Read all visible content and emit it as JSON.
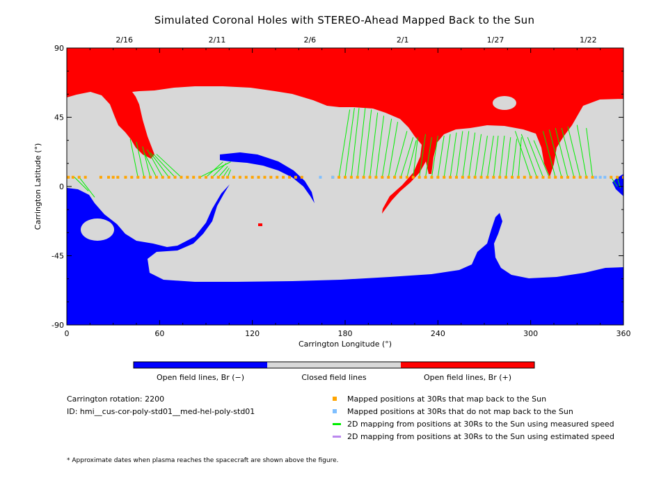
{
  "title": "Simulated Coronal Holes with STEREO-Ahead Mapped Back to the Sun",
  "top_dates": [
    {
      "label": "2/16",
      "lon": 30
    },
    {
      "label": "2/11",
      "lon": 90
    },
    {
      "label": "2/6",
      "lon": 150
    },
    {
      "label": "2/1",
      "lon": 210
    },
    {
      "label": "1/27",
      "lon": 270
    },
    {
      "label": "1/22",
      "lon": 330
    }
  ],
  "x_axis": {
    "label": "Carrington Longitude (°)",
    "ticks": [
      0,
      60,
      120,
      180,
      240,
      300,
      360
    ],
    "range": [
      0,
      360
    ]
  },
  "y_axis": {
    "label": "Carrington Latitude (°)",
    "ticks": [
      90,
      45,
      0,
      -45,
      -90
    ],
    "range": [
      -90,
      90
    ]
  },
  "colors": {
    "open_negative": "#0000ff",
    "closed": "#d8d8d8",
    "open_positive": "#ff0000",
    "mapped": "#ffa500",
    "unmapped": "#7fbfff",
    "measured": "#00ee00",
    "estimated": "#bb88ee"
  },
  "colorbar": {
    "labels": [
      "Open field lines, Br (−)",
      "Closed field lines",
      "Open field lines, Br (+)"
    ]
  },
  "info": {
    "rotation": "Carrington rotation: 2200",
    "id": "ID: hmi__cus-cor-poly-std01__med-hel-poly-std01"
  },
  "legend": [
    {
      "type": "square",
      "color": "#ffa500",
      "label": "Mapped positions at 30Rs that map back to the Sun"
    },
    {
      "type": "square",
      "color": "#7fbfff",
      "label": "Mapped positions at 30Rs that do not map back to the Sun"
    },
    {
      "type": "line",
      "color": "#00ee00",
      "label": "2D mapping from positions at 30Rs to the Sun using measured speed"
    },
    {
      "type": "line",
      "color": "#bb88ee",
      "label": "2D mapping from positions at 30Rs to the Sun using estimated speed"
    }
  ],
  "footnote": "* Approximate dates when plasma reaches the spacecraft are shown above the figure.",
  "chart_data": {
    "type": "scatter",
    "subtype": "coronal-hole map with spacecraft mapping",
    "xlim": [
      0,
      360
    ],
    "ylim": [
      -90,
      90
    ],
    "spacecraft_latitude": 6,
    "mapped_longitudes": [
      1,
      4,
      8,
      12,
      22,
      27,
      30,
      33,
      38,
      42,
      46,
      50,
      54,
      58,
      62,
      66,
      70,
      74,
      78,
      82,
      86,
      90,
      94,
      98,
      101,
      104,
      108,
      112,
      116,
      120,
      124,
      128,
      132,
      136,
      140,
      144,
      148,
      152,
      172,
      176,
      180,
      184,
      188,
      192,
      196,
      200,
      204,
      208,
      212,
      216,
      220,
      224,
      228,
      232,
      236,
      240,
      244,
      248,
      252,
      256,
      260,
      264,
      268,
      272,
      276,
      280,
      284,
      288,
      292,
      296,
      300,
      304,
      308,
      312,
      316,
      320,
      324,
      328,
      332,
      336,
      340,
      352,
      356,
      360
    ],
    "unmapped_longitudes": [
      164,
      172,
      342,
      345,
      348
    ],
    "mapping_lines": [
      {
        "from": [
          46,
          6
        ],
        "to": [
          41,
          31
        ]
      },
      {
        "from": [
          50,
          6
        ],
        "to": [
          45,
          29
        ]
      },
      {
        "from": [
          54,
          6
        ],
        "to": [
          49,
          26
        ]
      },
      {
        "from": [
          58,
          6
        ],
        "to": [
          50,
          22
        ]
      },
      {
        "from": [
          62,
          6
        ],
        "to": [
          52,
          24
        ]
      },
      {
        "from": [
          66,
          6
        ],
        "to": [
          54,
          22
        ]
      },
      {
        "from": [
          70,
          6
        ],
        "to": [
          56,
          21
        ]
      },
      {
        "from": [
          74,
          6
        ],
        "to": [
          58,
          21
        ]
      },
      {
        "from": [
          5,
          6
        ],
        "to": [
          14,
          -3
        ]
      },
      {
        "from": [
          8,
          6
        ],
        "to": [
          18,
          -7
        ]
      },
      {
        "from": [
          86,
          6
        ],
        "to": [
          106,
          16
        ]
      },
      {
        "from": [
          90,
          6
        ],
        "to": [
          101,
          16
        ]
      },
      {
        "from": [
          94,
          6
        ],
        "to": [
          103,
          15
        ]
      },
      {
        "from": [
          98,
          6
        ],
        "to": [
          104,
          13
        ]
      },
      {
        "from": [
          101,
          6
        ],
        "to": [
          105,
          12
        ]
      },
      {
        "from": [
          104,
          6
        ],
        "to": [
          106,
          11
        ]
      },
      {
        "from": [
          176,
          6
        ],
        "to": [
          183,
          50
        ]
      },
      {
        "from": [
          180,
          6
        ],
        "to": [
          186,
          51
        ]
      },
      {
        "from": [
          184,
          6
        ],
        "to": [
          189,
          51
        ]
      },
      {
        "from": [
          188,
          6
        ],
        "to": [
          193,
          51
        ]
      },
      {
        "from": [
          192,
          6
        ],
        "to": [
          197,
          50
        ]
      },
      {
        "from": [
          196,
          6
        ],
        "to": [
          201,
          48
        ]
      },
      {
        "from": [
          200,
          6
        ],
        "to": [
          205,
          46
        ]
      },
      {
        "from": [
          204,
          6
        ],
        "to": [
          210,
          44
        ]
      },
      {
        "from": [
          208,
          6
        ],
        "to": [
          214,
          42
        ]
      },
      {
        "from": [
          212,
          6
        ],
        "to": [
          220,
          36
        ]
      },
      {
        "from": [
          216,
          6
        ],
        "to": [
          224,
          32
        ]
      },
      {
        "from": [
          220,
          6
        ],
        "to": [
          226,
          30
        ]
      },
      {
        "from": [
          224,
          6
        ],
        "to": [
          227,
          32
        ]
      },
      {
        "from": [
          228,
          6
        ],
        "to": [
          232,
          34
        ]
      },
      {
        "from": [
          232,
          6
        ],
        "to": [
          236,
          32
        ]
      },
      {
        "from": [
          236,
          6
        ],
        "to": [
          240,
          33
        ]
      },
      {
        "from": [
          240,
          6
        ],
        "to": [
          244,
          33
        ]
      },
      {
        "from": [
          244,
          6
        ],
        "to": [
          248,
          34
        ]
      },
      {
        "from": [
          248,
          6
        ],
        "to": [
          252,
          35
        ]
      },
      {
        "from": [
          252,
          6
        ],
        "to": [
          256,
          36
        ]
      },
      {
        "from": [
          256,
          6
        ],
        "to": [
          260,
          36
        ]
      },
      {
        "from": [
          260,
          6
        ],
        "to": [
          264,
          35
        ]
      },
      {
        "from": [
          264,
          6
        ],
        "to": [
          268,
          34
        ]
      },
      {
        "from": [
          268,
          6
        ],
        "to": [
          272,
          33
        ]
      },
      {
        "from": [
          272,
          6
        ],
        "to": [
          276,
          33
        ]
      },
      {
        "from": [
          276,
          6
        ],
        "to": [
          279,
          33
        ]
      },
      {
        "from": [
          280,
          6
        ],
        "to": [
          283,
          33
        ]
      },
      {
        "from": [
          284,
          6
        ],
        "to": [
          287,
          32
        ]
      },
      {
        "from": [
          288,
          6
        ],
        "to": [
          291,
          31
        ]
      },
      {
        "from": [
          292,
          6
        ],
        "to": [
          294,
          32
        ]
      },
      {
        "from": [
          300,
          6
        ],
        "to": [
          290,
          36
        ]
      },
      {
        "from": [
          304,
          6
        ],
        "to": [
          294,
          34
        ]
      },
      {
        "from": [
          308,
          6
        ],
        "to": [
          298,
          32
        ]
      },
      {
        "from": [
          312,
          6
        ],
        "to": [
          302,
          30
        ]
      },
      {
        "from": [
          316,
          6
        ],
        "to": [
          308,
          36
        ]
      },
      {
        "from": [
          320,
          6
        ],
        "to": [
          312,
          37
        ]
      },
      {
        "from": [
          324,
          6
        ],
        "to": [
          316,
          38
        ]
      },
      {
        "from": [
          328,
          6
        ],
        "to": [
          320,
          38
        ]
      },
      {
        "from": [
          332,
          6
        ],
        "to": [
          324,
          39
        ]
      },
      {
        "from": [
          336,
          6
        ],
        "to": [
          330,
          40
        ]
      },
      {
        "from": [
          340,
          6
        ],
        "to": [
          336,
          38
        ]
      },
      {
        "from": [
          352,
          6
        ],
        "to": [
          356,
          0
        ]
      },
      {
        "from": [
          356,
          6
        ],
        "to": [
          358,
          -1
        ]
      }
    ]
  }
}
